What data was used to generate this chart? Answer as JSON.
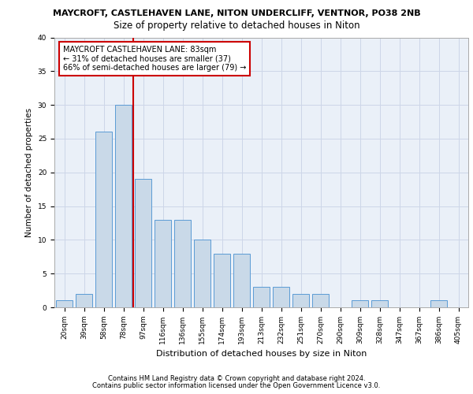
{
  "title1": "MAYCROFT, CASTLEHAVEN LANE, NITON UNDERCLIFF, VENTNOR, PO38 2NB",
  "title2": "Size of property relative to detached houses in Niton",
  "xlabel": "Distribution of detached houses by size in Niton",
  "ylabel": "Number of detached properties",
  "categories": [
    "20sqm",
    "39sqm",
    "58sqm",
    "78sqm",
    "97sqm",
    "116sqm",
    "136sqm",
    "155sqm",
    "174sqm",
    "193sqm",
    "213sqm",
    "232sqm",
    "251sqm",
    "270sqm",
    "290sqm",
    "309sqm",
    "328sqm",
    "347sqm",
    "367sqm",
    "386sqm",
    "405sqm"
  ],
  "values": [
    1,
    2,
    26,
    30,
    19,
    13,
    13,
    10,
    8,
    8,
    3,
    3,
    2,
    2,
    0,
    1,
    1,
    0,
    0,
    1,
    0
  ],
  "bar_color": "#c9d9e8",
  "bar_edge_color": "#5b9bd5",
  "grid_color": "#cdd6e8",
  "vline_color": "#cc0000",
  "annotation_text": "MAYCROFT CASTLEHAVEN LANE: 83sqm\n← 31% of detached houses are smaller (37)\n66% of semi-detached houses are larger (79) →",
  "annotation_box_color": "#ffffff",
  "annotation_box_edge": "#cc0000",
  "footer1": "Contains HM Land Registry data © Crown copyright and database right 2024.",
  "footer2": "Contains public sector information licensed under the Open Government Licence v3.0.",
  "ylim": [
    0,
    40
  ],
  "yticks": [
    0,
    5,
    10,
    15,
    20,
    25,
    30,
    35,
    40
  ],
  "bg_color": "#eaf0f8",
  "title1_fontsize": 8.0,
  "title2_fontsize": 8.5,
  "xlabel_fontsize": 8.0,
  "ylabel_fontsize": 7.5,
  "tick_fontsize": 6.5,
  "footer_fontsize": 6.0,
  "annot_fontsize": 7.0,
  "vline_x": 3.5
}
